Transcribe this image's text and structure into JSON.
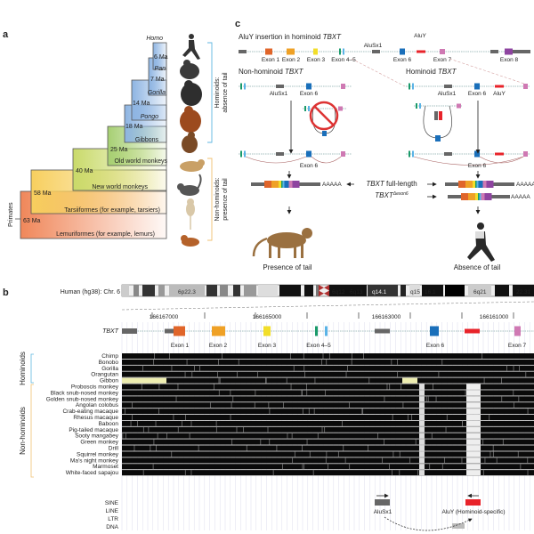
{
  "panels": {
    "a": "a",
    "b": "b",
    "c": "c"
  },
  "panel_a": {
    "root_label": "Primates",
    "nodes": [
      "63 Ma",
      "58 Ma",
      "40 Ma",
      "25 Ma",
      "18 Ma",
      "14 Ma",
      "7 Ma",
      "6 Ma"
    ],
    "taxa": [
      "Lemuriformes (for example, lemurs)",
      "Tarsiiformes (for example, tarsiers)",
      "New world monkeys",
      "Old world monkeys",
      "Gibbons",
      "Pongo",
      "Gorilla",
      "Pan",
      "Homo"
    ],
    "hominoid_bracket": [
      "Hominoids:",
      "absence of tail"
    ],
    "nonhominoid_bracket": [
      "Non-hominoids:",
      "presence of tail"
    ],
    "colors": {
      "lemur": "#f0875a",
      "tarsier": "#f7cf5e",
      "nwm": "#c9da6a",
      "owm": "#a6cf72",
      "hominoid": "#8db4e2",
      "hominoid_bracket": "#5fb6e0",
      "nonhominoid_bracket": "#f0c070"
    }
  },
  "panel_c": {
    "title_prefix": "AluY insertion in hominoid ",
    "gene": "TBXT",
    "top_labels": {
      "alusx1": "AluSx1",
      "aluy": "AluY",
      "exons": [
        "Exon 1",
        "Exon 2",
        "Exon 3",
        "Exon 4–5",
        "Exon 6",
        "Exon 7",
        "Exon 8"
      ]
    },
    "nonhominoid_title": "Non-hominoid ",
    "hominoid_title": "Hominoid ",
    "sub_labels": {
      "alusx1": "AluSx1",
      "exon6": "Exon 6",
      "aluy": "AluY"
    },
    "transcripts": {
      "full": "full-length",
      "delta": "Δexon6",
      "polya": "AAAAA"
    },
    "outcomes": {
      "left": "Presence of tail",
      "right": "Absence of tail"
    }
  },
  "panel_b": {
    "chromosome_label": "Human (hg38): Chr. 6",
    "bands": [
      "6p22.3",
      "6q12",
      "6q13",
      "q14.1",
      "q15",
      "16.1",
      "6q21",
      "22.31"
    ],
    "coordinates": [
      "166167000",
      "166165000",
      "166163000",
      "166161000"
    ],
    "gene": "TBXT",
    "exon_labels": [
      "Exon 1",
      "Exon 2",
      "Exon 3",
      "Exon 4–5",
      "Exon 6",
      "Exon 7"
    ],
    "group_labels": {
      "hominoids": "Hominoids",
      "nonhominoids": "Non-hominoids"
    },
    "species": [
      "Chimp",
      "Bonobo",
      "Gorilla",
      "Orangutan",
      "Gibbon",
      "Proboscis monkey",
      "Black snub-nosed monkey",
      "Golden snub-nosed monkey",
      "Angolan colobus",
      "Crab-eating macaque",
      "Rhesus macaque",
      "Baboon",
      "Pig-tailed macaque",
      "Sooty mangabey",
      "Green monkey",
      "Drill",
      "Squirrel monkey",
      "Ma’s night monkey",
      "Marmoset",
      "White-faced sapajou"
    ],
    "repeat_tracks": [
      "SINE",
      "LINE",
      "LTR",
      "DNA"
    ],
    "repeat_labels": {
      "alusx1": "AluSx1",
      "aluy": "AluY (Hominoid-specific)"
    },
    "exon_colors": [
      "#e0652a",
      "#efa126",
      "#f2de2a",
      "#1a9a6a",
      "#5ab3e6",
      "#1a6fba",
      "#cf79b3",
      "#8e44a0"
    ],
    "aluy_color": "#e8232a"
  }
}
